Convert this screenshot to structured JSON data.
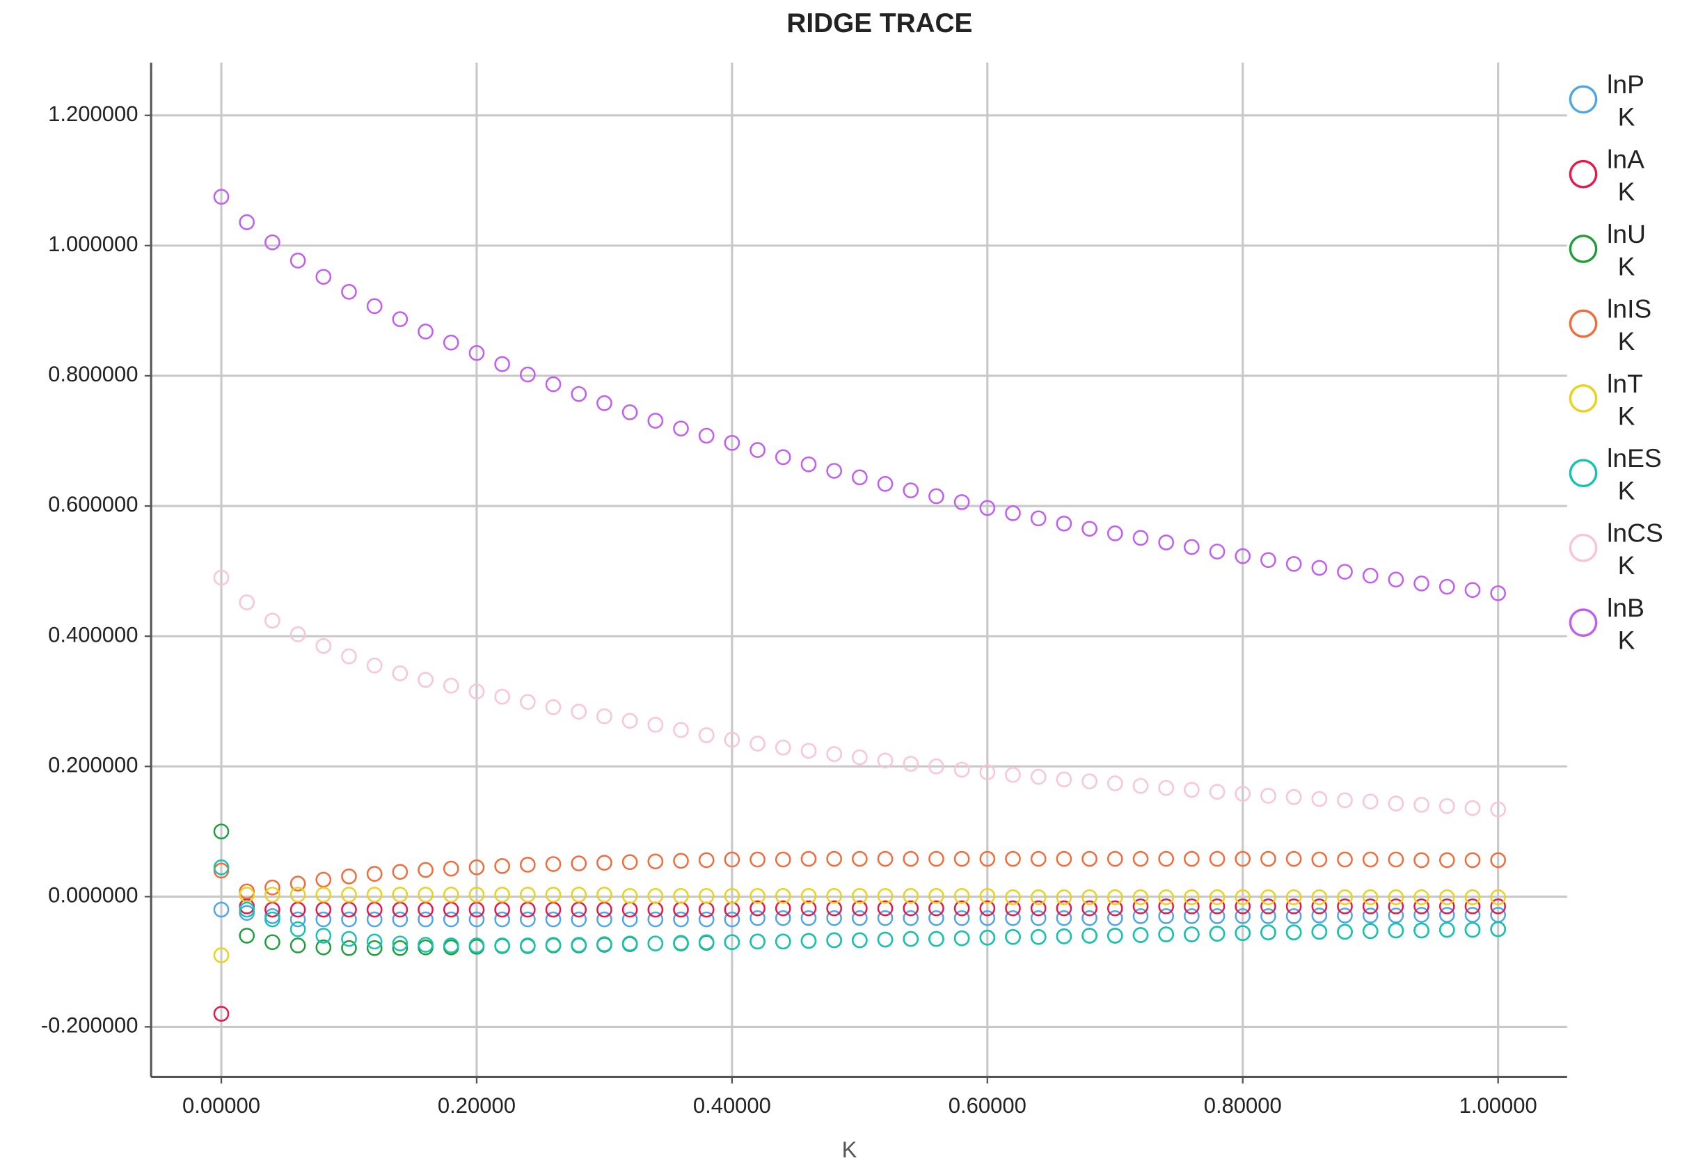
{
  "chart_data": {
    "type": "scatter",
    "title": "RIDGE TRACE",
    "x_label": "K",
    "x": [
      0,
      0.02,
      0.04,
      0.06,
      0.08,
      0.1,
      0.12,
      0.14,
      0.16,
      0.18,
      0.2,
      0.22,
      0.24,
      0.26,
      0.28,
      0.3,
      0.32,
      0.34,
      0.36,
      0.38,
      0.4,
      0.42,
      0.44,
      0.46,
      0.48,
      0.5,
      0.52,
      0.54,
      0.56,
      0.58,
      0.6,
      0.62,
      0.64,
      0.66,
      0.68,
      0.7,
      0.72,
      0.74,
      0.76,
      0.78,
      0.8,
      0.82,
      0.84,
      0.86,
      0.88,
      0.9,
      0.92,
      0.94,
      0.96,
      0.98,
      1
    ],
    "series": [
      {
        "name": "lnP K",
        "color": "#4ea5e8",
        "values": [
          -0.02,
          -0.025,
          -0.03,
          -0.035,
          -0.035,
          -0.035,
          -0.035,
          -0.035,
          -0.035,
          -0.035,
          -0.035,
          -0.035,
          -0.035,
          -0.035,
          -0.035,
          -0.035,
          -0.035,
          -0.035,
          -0.035,
          -0.035,
          -0.035,
          -0.033,
          -0.033,
          -0.033,
          -0.033,
          -0.033,
          -0.033,
          -0.033,
          -0.033,
          -0.033,
          -0.033,
          -0.033,
          -0.033,
          -0.033,
          -0.033,
          -0.033,
          -0.03,
          -0.03,
          -0.03,
          -0.03,
          -0.03,
          -0.03,
          -0.03,
          -0.029,
          -0.029,
          -0.029,
          -0.029,
          -0.028,
          -0.028,
          -0.028,
          -0.028
        ]
      },
      {
        "name": "lnA K",
        "color": "#e8174a",
        "values": [
          -0.18,
          -0.015,
          -0.02,
          -0.02,
          -0.02,
          -0.02,
          -0.02,
          -0.02,
          -0.02,
          -0.02,
          -0.02,
          -0.02,
          -0.02,
          -0.02,
          -0.02,
          -0.02,
          -0.02,
          -0.02,
          -0.02,
          -0.02,
          -0.02,
          -0.018,
          -0.018,
          -0.018,
          -0.018,
          -0.018,
          -0.018,
          -0.018,
          -0.018,
          -0.018,
          -0.018,
          -0.018,
          -0.018,
          -0.018,
          -0.018,
          -0.018,
          -0.015,
          -0.015,
          -0.015,
          -0.015,
          -0.015,
          -0.015,
          -0.015,
          -0.015,
          -0.015,
          -0.015,
          -0.015,
          -0.015,
          -0.015,
          -0.015,
          -0.015
        ]
      },
      {
        "name": "lnU K",
        "color": "#1f9e3c",
        "values": [
          0.1,
          -0.06,
          -0.07,
          -0.075,
          -0.078,
          -0.079,
          -0.079,
          -0.079,
          -0.078,
          -0.078,
          -0.077,
          -0.076,
          -0.076,
          -0.075,
          -0.075,
          -0.074,
          -0.073,
          -0.072,
          -0.072,
          -0.071,
          -0.07,
          -0.069,
          -0.069,
          -0.068,
          -0.067,
          -0.067,
          -0.066,
          -0.065,
          -0.065,
          -0.064,
          -0.063,
          -0.062,
          -0.062,
          -0.061,
          -0.06,
          -0.06,
          -0.059,
          -0.058,
          -0.058,
          -0.057,
          -0.056,
          -0.055,
          -0.055,
          -0.054,
          -0.054,
          -0.053,
          -0.052,
          -0.052,
          -0.051,
          -0.051,
          -0.05
        ]
      },
      {
        "name": "lnIS K",
        "color": "#f26b3a",
        "values": [
          0.04,
          0.008,
          0.014,
          0.02,
          0.026,
          0.031,
          0.035,
          0.038,
          0.041,
          0.043,
          0.045,
          0.047,
          0.049,
          0.05,
          0.051,
          0.052,
          0.053,
          0.054,
          0.055,
          0.056,
          0.057,
          0.057,
          0.057,
          0.058,
          0.058,
          0.058,
          0.058,
          0.058,
          0.058,
          0.058,
          0.058,
          0.058,
          0.058,
          0.058,
          0.058,
          0.058,
          0.058,
          0.058,
          0.058,
          0.058,
          0.058,
          0.058,
          0.058,
          0.057,
          0.057,
          0.057,
          0.057,
          0.056,
          0.056,
          0.056,
          0.056
        ]
      },
      {
        "name": "lnT K",
        "color": "#e8d21a",
        "values": [
          -0.09,
          0.003,
          0.003,
          0.003,
          0.003,
          0.003,
          0.003,
          0.003,
          0.003,
          0.003,
          0.003,
          0.003,
          0.003,
          0.003,
          0.003,
          0.003,
          0.001,
          0.001,
          0.001,
          0.001,
          0.001,
          0.001,
          0.001,
          0.001,
          0.001,
          0.001,
          0.001,
          0.001,
          0.001,
          0.001,
          0.001,
          -0.001,
          -0.001,
          -0.001,
          -0.001,
          -0.001,
          -0.001,
          -0.001,
          -0.001,
          -0.001,
          -0.001,
          -0.001,
          -0.001,
          -0.001,
          -0.001,
          -0.001,
          -0.001,
          -0.001,
          -0.001,
          -0.001,
          -0.001
        ]
      },
      {
        "name": "lnES K",
        "color": "#14c3b4",
        "values": [
          0.045,
          -0.02,
          -0.035,
          -0.05,
          -0.06,
          -0.065,
          -0.069,
          -0.072,
          -0.074,
          -0.075,
          -0.075,
          -0.075,
          -0.075,
          -0.074,
          -0.074,
          -0.073,
          -0.072,
          -0.072,
          -0.071,
          -0.07,
          -0.07,
          -0.069,
          -0.069,
          -0.068,
          -0.067,
          -0.067,
          -0.066,
          -0.065,
          -0.065,
          -0.064,
          -0.063,
          -0.062,
          -0.062,
          -0.061,
          -0.06,
          -0.06,
          -0.059,
          -0.058,
          -0.058,
          -0.057,
          -0.056,
          -0.055,
          -0.055,
          -0.054,
          -0.054,
          -0.053,
          -0.052,
          -0.052,
          -0.051,
          -0.051,
          -0.05
        ]
      },
      {
        "name": "lnCS K",
        "color": "#fbc3d8",
        "values": [
          0.49,
          0.452,
          0.424,
          0.403,
          0.385,
          0.369,
          0.355,
          0.343,
          0.333,
          0.324,
          0.315,
          0.307,
          0.299,
          0.291,
          0.284,
          0.277,
          0.27,
          0.264,
          0.256,
          0.248,
          0.241,
          0.235,
          0.229,
          0.224,
          0.219,
          0.214,
          0.209,
          0.204,
          0.2,
          0.195,
          0.191,
          0.187,
          0.184,
          0.18,
          0.177,
          0.174,
          0.17,
          0.167,
          0.164,
          0.161,
          0.158,
          0.155,
          0.153,
          0.15,
          0.148,
          0.146,
          0.143,
          0.141,
          0.139,
          0.136,
          0.134
        ]
      },
      {
        "name": "lnB K",
        "color": "#c25cf2",
        "values": [
          1.075,
          1.036,
          1.005,
          0.977,
          0.952,
          0.929,
          0.907,
          0.887,
          0.868,
          0.851,
          0.835,
          0.818,
          0.802,
          0.787,
          0.772,
          0.758,
          0.744,
          0.731,
          0.719,
          0.708,
          0.697,
          0.686,
          0.675,
          0.664,
          0.654,
          0.644,
          0.634,
          0.624,
          0.615,
          0.606,
          0.597,
          0.589,
          0.581,
          0.573,
          0.565,
          0.558,
          0.551,
          0.544,
          0.537,
          0.53,
          0.523,
          0.517,
          0.511,
          0.505,
          0.499,
          0.493,
          0.487,
          0.481,
          0.476,
          0.471,
          0.466
        ]
      }
    ],
    "xlim": [
      -0.055,
      1.054
    ],
    "ylim": [
      -0.277,
      1.281
    ],
    "xticks": [
      {
        "value": 0,
        "label": "0.00000"
      },
      {
        "value": 0.2,
        "label": "0.20000"
      },
      {
        "value": 0.4,
        "label": "0.40000"
      },
      {
        "value": 0.6,
        "label": "0.60000"
      },
      {
        "value": 0.8,
        "label": "0.80000"
      },
      {
        "value": 1,
        "label": "1.00000"
      }
    ],
    "yticks": [
      {
        "value": -0.2,
        "label": "-0.200000"
      },
      {
        "value": 0,
        "label": "0.000000"
      },
      {
        "value": 0.2,
        "label": "0.200000"
      },
      {
        "value": 0.4,
        "label": "0.400000"
      },
      {
        "value": 0.6,
        "label": "0.600000"
      },
      {
        "value": 0.8,
        "label": "0.800000"
      },
      {
        "value": 1,
        "label": "1.000000"
      },
      {
        "value": 1.2,
        "label": "1.200000"
      }
    ],
    "grid": true,
    "legend": "right"
  }
}
